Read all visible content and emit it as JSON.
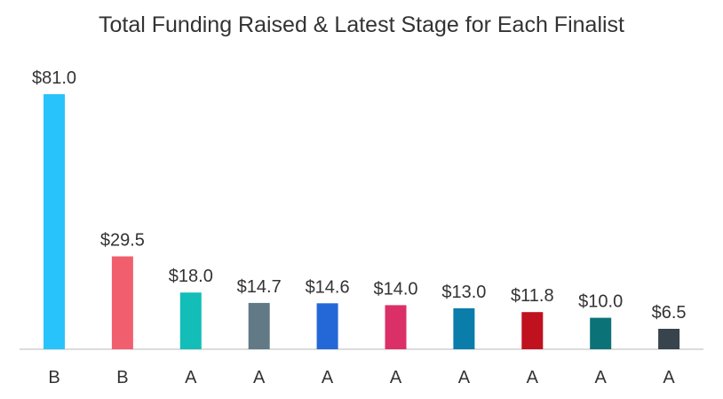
{
  "chart_data": {
    "type": "bar",
    "title": "Total Funding Raised & Latest Stage for Each Finalist",
    "xlabel": "",
    "ylabel": "",
    "categories": [
      "B",
      "B",
      "A",
      "A",
      "A",
      "A",
      "A",
      "A",
      "A",
      "A"
    ],
    "values": [
      81.0,
      29.5,
      18.0,
      14.7,
      14.6,
      14.0,
      13.0,
      11.8,
      10.0,
      6.5
    ],
    "data_labels": [
      "$81.0",
      "$29.5",
      "$18.0",
      "$14.7",
      "$14.6",
      "$14.0",
      "$13.0",
      "$11.8",
      "$10.0",
      "$6.5"
    ],
    "colors": [
      "#29c3fb",
      "#f15f6f",
      "#13bdb8",
      "#617a86",
      "#2468d8",
      "#db2f68",
      "#0a7daa",
      "#c0111f",
      "#0b7377",
      "#37434d"
    ],
    "ylim": [
      0,
      81
    ],
    "grid": false,
    "legend": "none"
  }
}
